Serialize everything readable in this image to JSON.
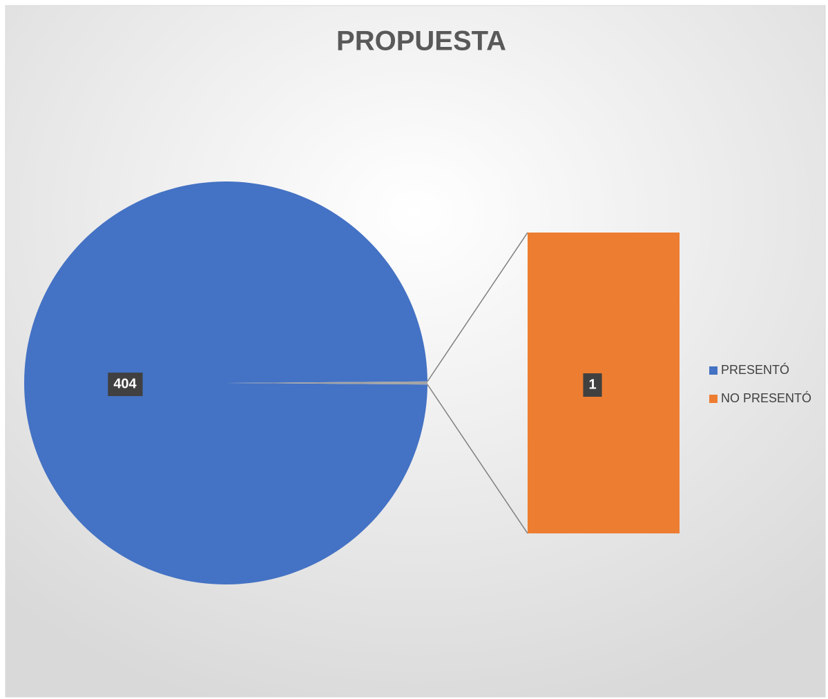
{
  "chart_data": {
    "type": "bar-of-pie",
    "title": "PROPUESTA",
    "categories": [
      "PRESENTÓ",
      "NO PRESENTÓ"
    ],
    "values": [
      404,
      1
    ],
    "colors": [
      "#4472c4",
      "#ed7d31"
    ],
    "other_color": "#a5a5a5",
    "legend": "right"
  }
}
